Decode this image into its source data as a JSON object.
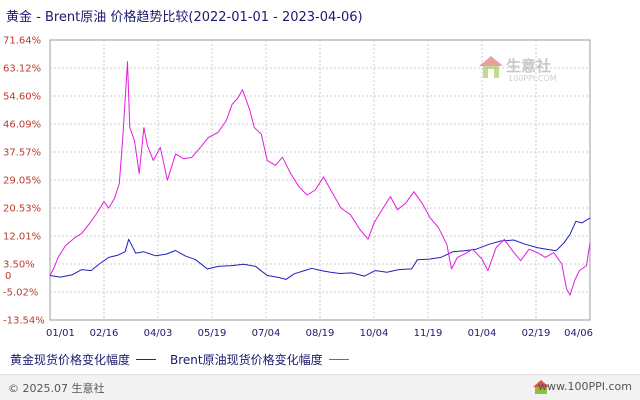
{
  "title": "黄金 - Brent原油 价格趋势比较(2022-01-01 - 2023-04-06)",
  "legend": [
    {
      "label": "黄金现货价格变化幅度",
      "color": "#1f1fbf"
    },
    {
      "label": "Brent原油现货价格变化幅度",
      "color": "#e01ee0"
    }
  ],
  "footer": {
    "copyright": "© 2025.07 生意社",
    "site": "www.100PPI.com"
  },
  "watermark": {
    "name": "生意社",
    "sub": "100PPI.COM"
  },
  "chart_data": {
    "type": "line",
    "title": "黄金 - Brent原油 价格趋势比较(2022-01-01 - 2023-04-06)",
    "x_start": "2022-01-01",
    "x_end": "2023-04-06",
    "x_tick_labels": [
      "01/01",
      "02/16",
      "04/03",
      "05/19",
      "07/04",
      "08/19",
      "10/04",
      "11/19",
      "01/04",
      "02/19",
      "04/06"
    ],
    "y_tick_labels": [
      "71.64%",
      "63.12%",
      "54.60%",
      "46.09%",
      "37.57%",
      "29.05%",
      "20.53%",
      "12.01%",
      "3.50%",
      "-5.02%",
      "-13.54%"
    ],
    "y_ticks": [
      71.64,
      63.12,
      54.6,
      46.09,
      37.57,
      29.05,
      20.53,
      12.01,
      3.5,
      -5.02,
      -13.54
    ],
    "y_zero_label": "0",
    "ylim": [
      -13.54,
      71.64
    ],
    "grid": true,
    "series": [
      {
        "name": "黄金现货价格变化幅度",
        "color": "#1f1fbf",
        "points": [
          [
            "2022-01-01",
            0
          ],
          [
            "2022-01-10",
            -0.5
          ],
          [
            "2022-01-20",
            0.2
          ],
          [
            "2022-01-28",
            1.8
          ],
          [
            "2022-02-05",
            1.5
          ],
          [
            "2022-02-12",
            3.5
          ],
          [
            "2022-02-20",
            5.5
          ],
          [
            "2022-02-28",
            6.2
          ],
          [
            "2022-03-06",
            7.2
          ],
          [
            "2022-03-09",
            11.0
          ],
          [
            "2022-03-15",
            6.8
          ],
          [
            "2022-03-22",
            7.2
          ],
          [
            "2022-04-01",
            6.0
          ],
          [
            "2022-04-10",
            6.5
          ],
          [
            "2022-04-18",
            7.6
          ],
          [
            "2022-04-26",
            6.0
          ],
          [
            "2022-05-05",
            4.8
          ],
          [
            "2022-05-15",
            2.0
          ],
          [
            "2022-05-25",
            2.8
          ],
          [
            "2022-06-05",
            3.0
          ],
          [
            "2022-06-15",
            3.4
          ],
          [
            "2022-06-25",
            2.8
          ],
          [
            "2022-07-05",
            0.0
          ],
          [
            "2022-07-15",
            -0.6
          ],
          [
            "2022-07-21",
            -1.2
          ],
          [
            "2022-07-28",
            0.5
          ],
          [
            "2022-08-05",
            1.4
          ],
          [
            "2022-08-12",
            2.2
          ],
          [
            "2022-08-20",
            1.5
          ],
          [
            "2022-08-28",
            1.0
          ],
          [
            "2022-09-05",
            0.6
          ],
          [
            "2022-09-15",
            0.8
          ],
          [
            "2022-09-26",
            -0.2
          ],
          [
            "2022-10-05",
            1.5
          ],
          [
            "2022-10-15",
            1.0
          ],
          [
            "2022-10-25",
            1.8
          ],
          [
            "2022-11-05",
            2.0
          ],
          [
            "2022-11-10",
            4.8
          ],
          [
            "2022-11-20",
            5.0
          ],
          [
            "2022-11-30",
            5.5
          ],
          [
            "2022-12-10",
            7.2
          ],
          [
            "2022-12-20",
            7.5
          ],
          [
            "2022-12-30",
            8.0
          ],
          [
            "2023-01-10",
            9.5
          ],
          [
            "2023-01-20",
            10.5
          ],
          [
            "2023-01-31",
            10.8
          ],
          [
            "2023-02-10",
            9.5
          ],
          [
            "2023-02-20",
            8.5
          ],
          [
            "2023-02-28",
            8.0
          ],
          [
            "2023-03-08",
            7.5
          ],
          [
            "2023-03-15",
            10.0
          ],
          [
            "2023-03-20",
            12.5
          ],
          [
            "2023-03-25",
            16.5
          ],
          [
            "2023-03-30",
            16.0
          ],
          [
            "2023-04-06",
            17.5
          ]
        ]
      },
      {
        "name": "Brent原油现货价格变化幅度",
        "color": "#e01ee0",
        "points": [
          [
            "2022-01-01",
            0
          ],
          [
            "2022-01-04",
            2.0
          ],
          [
            "2022-01-08",
            5.5
          ],
          [
            "2022-01-14",
            9.0
          ],
          [
            "2022-01-22",
            11.5
          ],
          [
            "2022-01-28",
            12.8
          ],
          [
            "2022-02-04",
            16.0
          ],
          [
            "2022-02-10",
            19.0
          ],
          [
            "2022-02-16",
            22.5
          ],
          [
            "2022-02-20",
            20.5
          ],
          [
            "2022-02-25",
            23.5
          ],
          [
            "2022-03-01",
            28.0
          ],
          [
            "2022-03-04",
            42.0
          ],
          [
            "2022-03-08",
            65.0
          ],
          [
            "2022-03-10",
            45.0
          ],
          [
            "2022-03-14",
            41.0
          ],
          [
            "2022-03-18",
            31.0
          ],
          [
            "2022-03-22",
            45.0
          ],
          [
            "2022-03-25",
            39.5
          ],
          [
            "2022-03-30",
            35.0
          ],
          [
            "2022-04-05",
            39.0
          ],
          [
            "2022-04-11",
            29.0
          ],
          [
            "2022-04-18",
            37.0
          ],
          [
            "2022-04-25",
            35.5
          ],
          [
            "2022-05-02",
            36.0
          ],
          [
            "2022-05-08",
            38.5
          ],
          [
            "2022-05-16",
            42.0
          ],
          [
            "2022-05-24",
            43.5
          ],
          [
            "2022-05-31",
            47.0
          ],
          [
            "2022-06-05",
            52.0
          ],
          [
            "2022-06-10",
            54.0
          ],
          [
            "2022-06-14",
            56.5
          ],
          [
            "2022-06-20",
            50.5
          ],
          [
            "2022-06-24",
            45.0
          ],
          [
            "2022-06-30",
            43.0
          ],
          [
            "2022-07-05",
            35.0
          ],
          [
            "2022-07-12",
            33.5
          ],
          [
            "2022-07-18",
            36.0
          ],
          [
            "2022-07-25",
            31.0
          ],
          [
            "2022-08-01",
            27.0
          ],
          [
            "2022-08-08",
            24.5
          ],
          [
            "2022-08-15",
            26.0
          ],
          [
            "2022-08-22",
            30.0
          ],
          [
            "2022-08-29",
            25.5
          ],
          [
            "2022-09-06",
            20.5
          ],
          [
            "2022-09-14",
            18.5
          ],
          [
            "2022-09-22",
            14.0
          ],
          [
            "2022-09-29",
            11.0
          ],
          [
            "2022-10-04",
            16.0
          ],
          [
            "2022-10-10",
            19.5
          ],
          [
            "2022-10-18",
            24.0
          ],
          [
            "2022-10-24",
            20.0
          ],
          [
            "2022-10-31",
            22.0
          ],
          [
            "2022-11-07",
            25.5
          ],
          [
            "2022-11-14",
            22.0
          ],
          [
            "2022-11-21",
            17.5
          ],
          [
            "2022-11-28",
            14.5
          ],
          [
            "2022-12-05",
            9.5
          ],
          [
            "2022-12-09",
            2.0
          ],
          [
            "2022-12-14",
            5.5
          ],
          [
            "2022-12-20",
            6.5
          ],
          [
            "2022-12-27",
            8.0
          ],
          [
            "2023-01-04",
            5.0
          ],
          [
            "2023-01-09",
            1.5
          ],
          [
            "2023-01-16",
            8.5
          ],
          [
            "2023-01-23",
            11.0
          ],
          [
            "2023-01-30",
            7.5
          ],
          [
            "2023-02-06",
            4.5
          ],
          [
            "2023-02-13",
            8.0
          ],
          [
            "2023-02-20",
            7.0
          ],
          [
            "2023-02-27",
            5.5
          ],
          [
            "2023-03-06",
            7.0
          ],
          [
            "2023-03-13",
            3.5
          ],
          [
            "2023-03-17",
            -4.0
          ],
          [
            "2023-03-20",
            -6.0
          ],
          [
            "2023-03-24",
            -1.5
          ],
          [
            "2023-03-28",
            1.5
          ],
          [
            "2023-04-03",
            3.0
          ],
          [
            "2023-04-06",
            10.0
          ]
        ]
      }
    ]
  }
}
